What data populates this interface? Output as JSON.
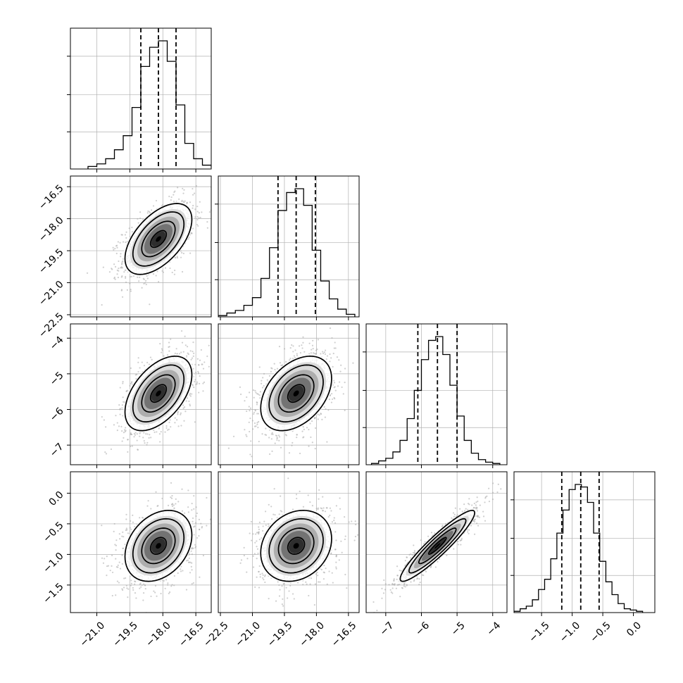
{
  "chart_data": {
    "type": "corner",
    "grid": true,
    "histogram": {
      "quantiles": [
        0.16,
        0.5,
        0.84
      ],
      "style": "step",
      "line_color": "#000000",
      "quantile_line_style": "dashed"
    },
    "params": [
      {
        "ticks": [
          "−21.0",
          "−19.5",
          "−18.0",
          "−16.5"
        ],
        "tick_values": [
          -21.0,
          -19.5,
          -18.0,
          -16.5
        ],
        "range": [
          -22.2,
          -15.8
        ],
        "quantile_values": [
          -19.0,
          -18.2,
          -17.4
        ],
        "hist_bins": [
          -21.4,
          -21.0,
          -20.6,
          -20.2,
          -19.8,
          -19.4,
          -19.0,
          -18.6,
          -18.2,
          -17.8,
          -17.4,
          -17.0,
          -16.6,
          -16.2,
          -15.8
        ],
        "hist_counts": [
          2,
          4,
          8,
          15,
          26,
          48,
          80,
          95,
          100,
          84,
          50,
          20,
          8,
          3,
          1
        ]
      },
      {
        "ticks": [
          "−22.5",
          "−21.0",
          "−19.5",
          "−18.0",
          "−16.5"
        ],
        "tick_values": [
          -22.5,
          -21.0,
          -19.5,
          -18.0,
          -16.5
        ],
        "range": [
          -22.6,
          -16.0
        ],
        "quantile_values": [
          -19.8,
          -18.95,
          -18.05
        ],
        "hist_bins": [
          -22.6,
          -22.2,
          -21.8,
          -21.4,
          -21.0,
          -20.6,
          -20.2,
          -19.8,
          -19.4,
          -19.0,
          -18.6,
          -18.2,
          -17.8,
          -17.4,
          -17.0,
          -16.6,
          -16.2
        ],
        "hist_counts": [
          1,
          3,
          5,
          9,
          15,
          30,
          54,
          83,
          97,
          100,
          87,
          52,
          28,
          14,
          6,
          2
        ]
      },
      {
        "ticks": [
          "−7",
          "−6",
          "−5",
          "−4"
        ],
        "tick_values": [
          -7,
          -6,
          -5,
          -4
        ],
        "range": [
          -7.55,
          -3.6
        ],
        "quantile_values": [
          -6.1,
          -5.55,
          -5.0
        ],
        "hist_bins": [
          -7.4,
          -7.2,
          -7.0,
          -6.8,
          -6.6,
          -6.4,
          -6.2,
          -6.0,
          -5.8,
          -5.6,
          -5.4,
          -5.2,
          -5.0,
          -4.8,
          -4.6,
          -4.4,
          -4.2,
          -4.0,
          -3.8
        ],
        "hist_counts": [
          1,
          3,
          5,
          10,
          19,
          36,
          58,
          82,
          97,
          100,
          86,
          62,
          38,
          19,
          9,
          4,
          2,
          1
        ]
      },
      {
        "ticks": [
          "−1.5",
          "−1.0",
          "−0.5",
          "0.0"
        ],
        "tick_values": [
          -1.5,
          -1.0,
          -0.5,
          0.0
        ],
        "range": [
          -1.95,
          0.35
        ],
        "quantile_values": [
          -1.17,
          -0.86,
          -0.56
        ],
        "hist_bins": [
          -1.95,
          -1.85,
          -1.75,
          -1.65,
          -1.55,
          -1.45,
          -1.35,
          -1.25,
          -1.15,
          -1.05,
          -0.95,
          -0.85,
          -0.75,
          -0.65,
          -0.55,
          -0.45,
          -0.35,
          -0.25,
          -0.15,
          -0.05,
          0.05,
          0.15
        ],
        "hist_counts": [
          1,
          3,
          5,
          10,
          18,
          26,
          42,
          62,
          80,
          96,
          100,
          98,
          86,
          62,
          40,
          24,
          14,
          7,
          3,
          2,
          1
        ]
      }
    ],
    "correlations": {
      "1-0": 0.55,
      "2-0": 0.5,
      "2-1": 0.4,
      "3-0": 0.3,
      "3-1": 0.2,
      "3-2": 0.93
    }
  }
}
